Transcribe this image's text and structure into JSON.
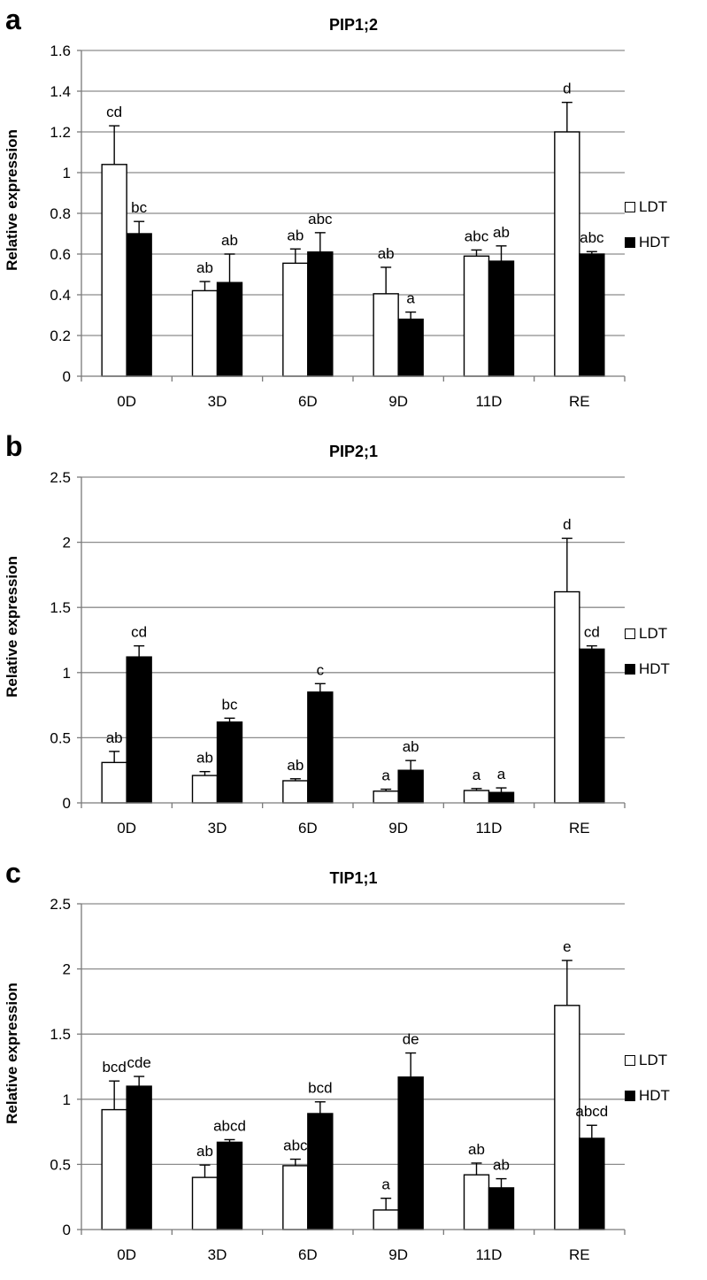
{
  "chart_data": [
    {
      "panel_letter": "a",
      "type": "bar",
      "title": "PIP1;2",
      "ylabel": "Relative expression",
      "xlabel": "",
      "ylim": [
        0,
        1.6
      ],
      "yticks": [
        "0",
        "0.2",
        "0.4",
        "0.6",
        "0.8",
        "1",
        "1.2",
        "1.4",
        "1.6"
      ],
      "ytick_values": [
        0,
        0.2,
        0.4,
        0.6,
        0.8,
        1,
        1.2,
        1.4,
        1.6
      ],
      "categories": [
        "0D",
        "3D",
        "6D",
        "9D",
        "11D",
        "RE"
      ],
      "legend": [
        "LDT",
        "HDT"
      ],
      "series": [
        {
          "name": "LDT",
          "color": "#ffffff",
          "values": [
            1.04,
            0.42,
            0.555,
            0.405,
            0.59,
            1.2
          ],
          "errors": [
            0.19,
            0.045,
            0.07,
            0.13,
            0.03,
            0.145
          ],
          "labels": [
            "cd",
            "ab",
            "ab",
            "ab",
            "abc",
            "d"
          ]
        },
        {
          "name": "HDT",
          "color": "#000000",
          "values": [
            0.7,
            0.46,
            0.61,
            0.28,
            0.565,
            0.6
          ],
          "errors": [
            0.06,
            0.14,
            0.095,
            0.035,
            0.075,
            0.012
          ],
          "labels": [
            "bc",
            "ab",
            "abc",
            "a",
            "ab",
            "abc"
          ]
        }
      ]
    },
    {
      "panel_letter": "b",
      "type": "bar",
      "title": "PIP2;1",
      "ylabel": "Relative expression",
      "xlabel": "",
      "ylim": [
        0,
        2.5
      ],
      "yticks": [
        "0",
        "0.5",
        "1",
        "1.5",
        "2",
        "2.5"
      ],
      "ytick_values": [
        0,
        0.5,
        1,
        1.5,
        2,
        2.5
      ],
      "categories": [
        "0D",
        "3D",
        "6D",
        "9D",
        "11D",
        "RE"
      ],
      "legend": [
        "LDT",
        "HDT"
      ],
      "series": [
        {
          "name": "LDT",
          "color": "#ffffff",
          "values": [
            0.31,
            0.21,
            0.17,
            0.09,
            0.095,
            1.62
          ],
          "errors": [
            0.085,
            0.03,
            0.015,
            0.015,
            0.015,
            0.41
          ],
          "labels": [
            "ab",
            "ab",
            "ab",
            "a",
            "a",
            "d"
          ]
        },
        {
          "name": "HDT",
          "color": "#000000",
          "values": [
            1.12,
            0.62,
            0.85,
            0.25,
            0.08,
            1.18
          ],
          "errors": [
            0.085,
            0.03,
            0.065,
            0.075,
            0.035,
            0.025
          ],
          "labels": [
            "cd",
            "bc",
            "c",
            "ab",
            "a",
            "cd"
          ]
        }
      ]
    },
    {
      "panel_letter": "c",
      "type": "bar",
      "title": "TIP1;1",
      "ylabel": "Relative expression",
      "xlabel": "",
      "ylim": [
        0,
        2.5
      ],
      "yticks": [
        "0",
        "0.5",
        "1",
        "1.5",
        "2",
        "2.5"
      ],
      "ytick_values": [
        0,
        0.5,
        1,
        1.5,
        2,
        2.5
      ],
      "categories": [
        "0D",
        "3D",
        "6D",
        "9D",
        "11D",
        "RE"
      ],
      "legend": [
        "LDT",
        "HDT"
      ],
      "series": [
        {
          "name": "LDT",
          "color": "#ffffff",
          "values": [
            0.92,
            0.4,
            0.49,
            0.15,
            0.42,
            1.72
          ],
          "errors": [
            0.22,
            0.095,
            0.05,
            0.09,
            0.09,
            0.345
          ],
          "labels": [
            "bcd",
            "ab",
            "abc",
            "a",
            "ab",
            "e"
          ]
        },
        {
          "name": "HDT",
          "color": "#000000",
          "values": [
            1.1,
            0.67,
            0.89,
            1.17,
            0.32,
            0.7
          ],
          "errors": [
            0.075,
            0.02,
            0.09,
            0.185,
            0.07,
            0.1
          ],
          "labels": [
            "cde",
            "abcd",
            "bcd",
            "de",
            "ab",
            "abcd"
          ]
        }
      ]
    }
  ]
}
